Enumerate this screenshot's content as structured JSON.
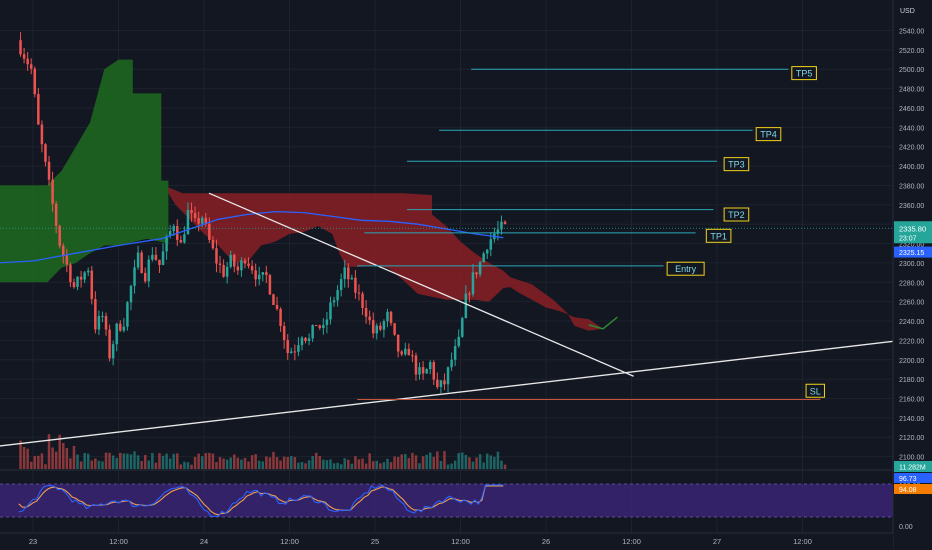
{
  "chart_data": {
    "type": "candlestick",
    "currency": "USD",
    "price_axis": {
      "min": 2080,
      "max": 2560,
      "step": 20,
      "ticks": [
        "2100.00",
        "2120.00",
        "2140.00",
        "2160.00",
        "2180.00",
        "2200.00",
        "2220.00",
        "2240.00",
        "2260.00",
        "2280.00",
        "2300.00",
        "2320.00",
        "2340.00",
        "2360.00",
        "2380.00",
        "2400.00",
        "2420.00",
        "2440.00",
        "2460.00",
        "2480.00",
        "2500.00",
        "2520.00",
        "2540.00"
      ]
    },
    "time_axis": {
      "ticks": [
        {
          "label": "23",
          "t": 0
        },
        {
          "label": "12:00",
          "t": 12
        },
        {
          "label": "24",
          "t": 24
        },
        {
          "label": "12:00",
          "t": 36
        },
        {
          "label": "25",
          "t": 48
        },
        {
          "label": "12:00",
          "t": 60
        },
        {
          "label": "26",
          "t": 72
        },
        {
          "label": "12:00",
          "t": 84
        },
        {
          "label": "27",
          "t": 96
        },
        {
          "label": "12:00",
          "t": 108
        }
      ]
    },
    "current_price": "2335.80",
    "countdown": "23:07",
    "ma_price": "2325.15",
    "volume_label": "11.282M",
    "stoch_labels": [
      "96.73",
      "94.08"
    ],
    "osc_ticks": [
      "100.00",
      "0.00"
    ],
    "levels": [
      {
        "label": "TP5",
        "price": 2500
      },
      {
        "label": "TP4",
        "price": 2437
      },
      {
        "label": "TP3",
        "price": 2405
      },
      {
        "label": "TP2",
        "price": 2355
      },
      {
        "label": "TP1",
        "price": 2331
      },
      {
        "label": "Entry",
        "price": 2297
      },
      {
        "label": "SL",
        "price": 2159
      }
    ],
    "colors": {
      "up": "#26a69a",
      "down": "#ef5350",
      "kumo_bull": "#1f6b1f",
      "kumo_bear": "#8a1f24",
      "level_line": "#2aa7b8",
      "level_label": "#f2d21b",
      "sl_line": "#c8553d",
      "ma_line": "#2962ff",
      "stoch_band": "#3b2474",
      "stoch_k": "#2962ff",
      "stoch_d": "#f0a04b"
    }
  }
}
